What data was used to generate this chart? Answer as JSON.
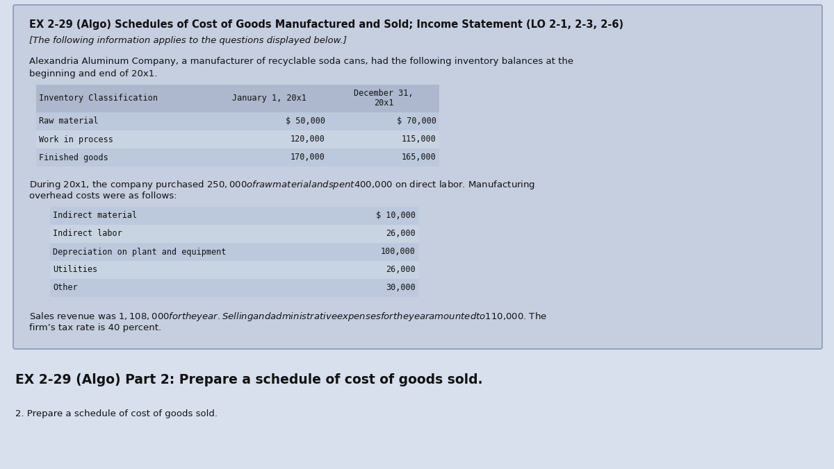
{
  "title": "EX 2-29 (Algo) Schedules of Cost of Goods Manufactured and Sold; Income Statement (LO 2-1, 2-3, 2-6)",
  "subtitle": "[The following information applies to the questions displayed below.]",
  "intro_line1": "Alexandria Aluminum Company, a manufacturer of recyclable soda cans, had the following inventory balances at the",
  "intro_line2": "beginning and end of 20x1.",
  "table1_header_col1": "Inventory Classification",
  "table1_header_col2": "January 1, 20x1",
  "table1_header_col3a": "December 31,",
  "table1_header_col3b": "20x1",
  "table1_rows": [
    [
      "Raw material",
      "$ 50,000",
      "$ 70,000"
    ],
    [
      "Work in process",
      "120,000",
      "115,000"
    ],
    [
      "Finished goods",
      "170,000",
      "165,000"
    ]
  ],
  "mid_line1": "During 20x1, the company purchased $250,000 of raw material and spent $400,000 on direct labor. Manufacturing",
  "mid_line2": "overhead costs were as follows:",
  "table2_rows": [
    [
      "Indirect material",
      "$ 10,000"
    ],
    [
      "Indirect labor",
      "26,000"
    ],
    [
      "Depreciation on plant and equipment",
      "100,000"
    ],
    [
      "Utilities",
      "26,000"
    ],
    [
      "Other",
      "30,000"
    ]
  ],
  "bottom_line1": "Sales revenue was $1,108,000 for the year. Selling and administrative expenses for the year amounted to $110,000. The",
  "bottom_line2": "firm’s tax rate is 40 percent.",
  "section_title": "EX 2-29 (Algo) Part 2: Prepare a schedule of cost of goods sold.",
  "instruction": "2. Prepare a schedule of cost of goods sold.",
  "box_bg_color": "#c5cfe0",
  "table_header_bg": "#adb8ce",
  "table_row1_bg": "#bcc8db",
  "table_row2_bg": "#c9d4e3",
  "outer_bg": "#d8e0ed",
  "lower_bg": "#dce4f0",
  "text_color": "#111111",
  "mono_font": "monospace",
  "sans_font": "DejaVu Sans"
}
